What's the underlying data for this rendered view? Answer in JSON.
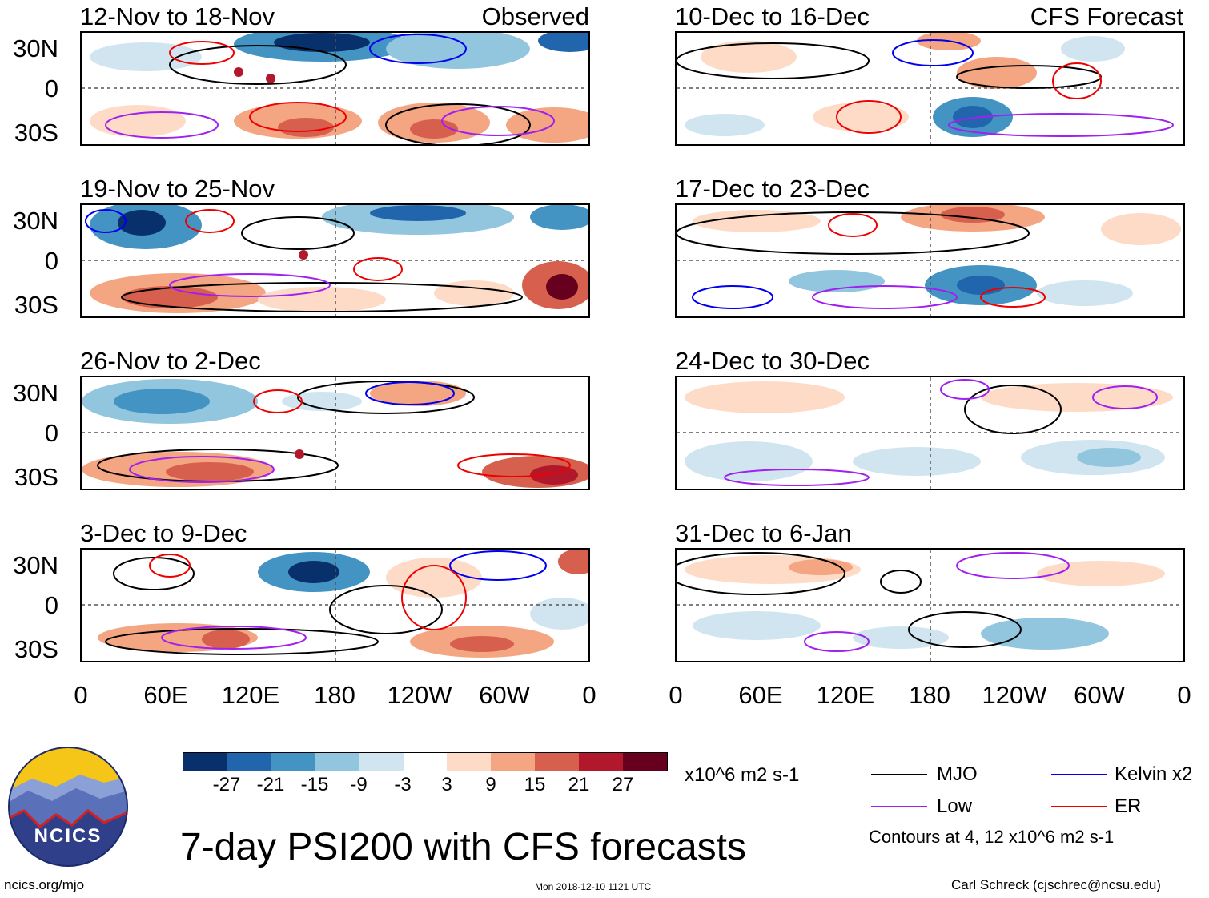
{
  "headings": {
    "left": "Observed",
    "right": "CFS Forecast"
  },
  "panels": {
    "observed": [
      "12-Nov to 18-Nov",
      "19-Nov to 25-Nov",
      "26-Nov to 2-Dec",
      "3-Dec to 9-Dec"
    ],
    "forecast": [
      "10-Dec to 16-Dec",
      "17-Dec to 23-Dec",
      "24-Dec to 30-Dec",
      "31-Dec to 6-Jan"
    ]
  },
  "lat_labels": [
    "30N",
    "0",
    "30S"
  ],
  "lon_labels": [
    "0",
    "60E",
    "120E",
    "180",
    "120W",
    "60W",
    "0"
  ],
  "colorbar": {
    "ticks": [
      "-27",
      "-21",
      "-15",
      "-9",
      "-3",
      "3",
      "9",
      "15",
      "21",
      "27"
    ],
    "colors": [
      "#08306b",
      "#2166ac",
      "#4393c3",
      "#92c5de",
      "#d1e5f0",
      "#ffffff",
      "#fddbc7",
      "#f4a582",
      "#d6604d",
      "#b2182b",
      "#67001f"
    ],
    "units": "x10^6 m2 s-1"
  },
  "legend": {
    "items": [
      {
        "label": "MJO",
        "color": "#000000"
      },
      {
        "label": "Kelvin x2",
        "color": "#0000ee"
      },
      {
        "label": "Low",
        "color": "#a020f0"
      },
      {
        "label": "ER",
        "color": "#ee0000"
      }
    ],
    "note": "Contours at 4, 12 x10^6 m2 s-1"
  },
  "title": "7-day PSI200 with CFS forecasts",
  "logo": {
    "text": "NCICS"
  },
  "footer": {
    "url": "ncics.org/mjo",
    "timestamp": "Mon 2018-12-10 1121 UTC",
    "author": "Carl Schreck (cjschrec@ncsu.edu)"
  }
}
